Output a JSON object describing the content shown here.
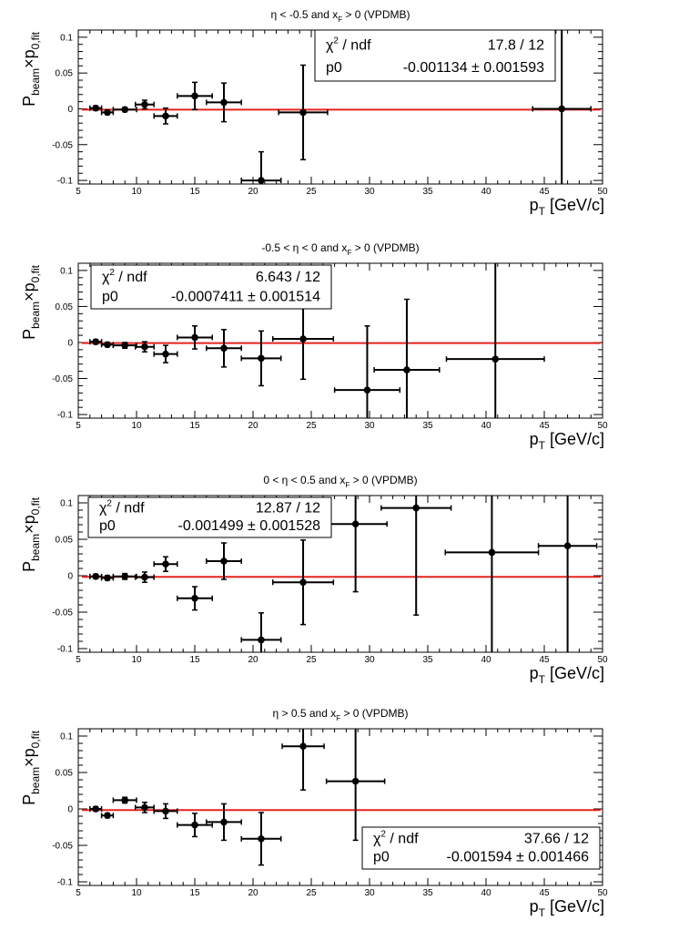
{
  "chart_data": [
    {
      "type": "scatter",
      "title_parts": [
        "η < -0.5 and x",
        "F",
        " > 0 (VPDMB)"
      ],
      "xlabel": "p",
      "xlabel_sub": "T",
      "xlabel_unit": " [GeV/c]",
      "ylabel": "P",
      "ylabel_sub1": "beam",
      "ylabel_mid": "×p",
      "ylabel_sub2": "0,fit",
      "xlim": [
        5,
        50
      ],
      "ylim": [
        -0.105,
        0.11
      ],
      "xticks": [
        "5",
        "10",
        "15",
        "20",
        "25",
        "30",
        "35",
        "40",
        "45",
        "50"
      ],
      "yticks": [
        "0.1",
        "0.05",
        "0",
        "-0.05",
        "-0.1"
      ],
      "legend_position": "top-right",
      "stats": {
        "chi2_label": "χ",
        "chi2_sup": "2",
        "chi2_suffix": " / ndf",
        "chi2_value": "17.8 / 12",
        "p0_label": "p0",
        "p0_value": "-0.001134 ± 0.001593"
      },
      "fit_value": -0.001134,
      "points": [
        {
          "x": 6.5,
          "y": 0.001,
          "xerr": 0.5,
          "yerr": 0.003
        },
        {
          "x": 7.5,
          "y": -0.005,
          "xerr": 0.5,
          "yerr": 0.003
        },
        {
          "x": 9.0,
          "y": -0.001,
          "xerr": 1.0,
          "yerr": 0.003
        },
        {
          "x": 10.7,
          "y": 0.006,
          "xerr": 0.8,
          "yerr": 0.006
        },
        {
          "x": 12.5,
          "y": -0.01,
          "xerr": 1.0,
          "yerr": 0.011
        },
        {
          "x": 15.0,
          "y": 0.018,
          "xerr": 1.5,
          "yerr": 0.019
        },
        {
          "x": 17.5,
          "y": 0.009,
          "xerr": 1.5,
          "yerr": 0.027
        },
        {
          "x": 20.7,
          "y": -0.1,
          "xerr": 1.7,
          "yerr": 0.04
        },
        {
          "x": 24.3,
          "y": -0.005,
          "xerr": 2.1,
          "yerr": 0.066
        },
        {
          "x": 46.5,
          "y": 0.0,
          "xerr": 2.5,
          "yerr": 0.11
        }
      ]
    },
    {
      "type": "scatter",
      "title_parts": [
        "-0.5 < η < 0 and x",
        "F",
        " > 0 (VPDMB)"
      ],
      "xlabel": "p",
      "xlabel_sub": "T",
      "xlabel_unit": " [GeV/c]",
      "ylabel": "P",
      "ylabel_sub1": "beam",
      "ylabel_mid": "×p",
      "ylabel_sub2": "0,fit",
      "xlim": [
        5,
        50
      ],
      "ylim": [
        -0.105,
        0.11
      ],
      "xticks": [
        "5",
        "10",
        "15",
        "20",
        "25",
        "30",
        "35",
        "40",
        "45",
        "50"
      ],
      "yticks": [
        "0.1",
        "0.05",
        "0",
        "-0.05",
        "-0.1"
      ],
      "legend_position": "top-left",
      "stats": {
        "chi2_label": "χ",
        "chi2_sup": "2",
        "chi2_suffix": " / ndf",
        "chi2_value": "6.643 / 12",
        "p0_label": "p0",
        "p0_value": "-0.0007411 ± 0.001514"
      },
      "fit_value": -0.0007411,
      "points": [
        {
          "x": 6.5,
          "y": 0.001,
          "xerr": 0.5,
          "yerr": 0.003
        },
        {
          "x": 7.5,
          "y": -0.003,
          "xerr": 0.5,
          "yerr": 0.003
        },
        {
          "x": 9.0,
          "y": -0.004,
          "xerr": 1.0,
          "yerr": 0.004
        },
        {
          "x": 10.7,
          "y": -0.006,
          "xerr": 0.8,
          "yerr": 0.007
        },
        {
          "x": 12.5,
          "y": -0.016,
          "xerr": 1.0,
          "yerr": 0.012
        },
        {
          "x": 15.0,
          "y": 0.007,
          "xerr": 1.5,
          "yerr": 0.016
        },
        {
          "x": 17.5,
          "y": -0.008,
          "xerr": 1.5,
          "yerr": 0.026
        },
        {
          "x": 20.7,
          "y": -0.022,
          "xerr": 1.7,
          "yerr": 0.038
        },
        {
          "x": 24.3,
          "y": 0.005,
          "xerr": 2.6,
          "yerr": 0.056
        },
        {
          "x": 29.8,
          "y": -0.066,
          "xerr": 2.8,
          "yerr": 0.089
        },
        {
          "x": 33.2,
          "y": -0.038,
          "xerr": 2.8,
          "yerr": 0.098
        },
        {
          "x": 40.8,
          "y": -0.023,
          "xerr": 4.2,
          "yerr": 0.135
        }
      ]
    },
    {
      "type": "scatter",
      "title_parts": [
        "0 < η < 0.5 and x",
        "F",
        " > 0 (VPDMB)"
      ],
      "xlabel": "p",
      "xlabel_sub": "T",
      "xlabel_unit": " [GeV/c]",
      "ylabel": "P",
      "ylabel_sub1": "beam",
      "ylabel_mid": "×p",
      "ylabel_sub2": "0,fit",
      "xlim": [
        5,
        50
      ],
      "ylim": [
        -0.105,
        0.11
      ],
      "xticks": [
        "5",
        "10",
        "15",
        "20",
        "25",
        "30",
        "35",
        "40",
        "45",
        "50"
      ],
      "yticks": [
        "0.1",
        "0.05",
        "0",
        "-0.05",
        "-0.1"
      ],
      "legend_position": "top-left",
      "stats": {
        "chi2_label": "χ",
        "chi2_sup": "2",
        "chi2_suffix": " / ndf",
        "chi2_value": "12.87 / 12",
        "p0_label": "p0",
        "p0_value": "-0.001499 ± 0.001528"
      },
      "fit_value": -0.001499,
      "points": [
        {
          "x": 6.5,
          "y": -0.001,
          "xerr": 0.5,
          "yerr": 0.003
        },
        {
          "x": 7.5,
          "y": -0.003,
          "xerr": 0.5,
          "yerr": 0.003
        },
        {
          "x": 9.0,
          "y": -0.001,
          "xerr": 1.0,
          "yerr": 0.004
        },
        {
          "x": 10.7,
          "y": -0.002,
          "xerr": 0.8,
          "yerr": 0.007
        },
        {
          "x": 12.5,
          "y": 0.016,
          "xerr": 1.0,
          "yerr": 0.01
        },
        {
          "x": 15.0,
          "y": -0.031,
          "xerr": 1.5,
          "yerr": 0.016
        },
        {
          "x": 17.5,
          "y": 0.02,
          "xerr": 1.5,
          "yerr": 0.025
        },
        {
          "x": 20.7,
          "y": -0.088,
          "xerr": 1.7,
          "yerr": 0.037
        },
        {
          "x": 24.3,
          "y": -0.009,
          "xerr": 2.6,
          "yerr": 0.058
        },
        {
          "x": 28.8,
          "y": 0.071,
          "xerr": 2.7,
          "yerr": 0.093
        },
        {
          "x": 34.0,
          "y": 0.093,
          "xerr": 3.0,
          "yerr": 0.147
        },
        {
          "x": 40.5,
          "y": 0.032,
          "xerr": 4.0,
          "yerr": 0.14
        },
        {
          "x": 47.0,
          "y": 0.041,
          "xerr": 2.5,
          "yerr": 0.15
        }
      ]
    },
    {
      "type": "scatter",
      "title_parts": [
        "η > 0.5 and x",
        "F",
        " > 0 (VPDMB)"
      ],
      "xlabel": "p",
      "xlabel_sub": "T",
      "xlabel_unit": " [GeV/c]",
      "ylabel": "P",
      "ylabel_sub1": "beam",
      "ylabel_mid": "×p",
      "ylabel_sub2": "0,fit",
      "xlim": [
        5,
        50
      ],
      "ylim": [
        -0.105,
        0.11
      ],
      "xticks": [
        "5",
        "10",
        "15",
        "20",
        "25",
        "30",
        "35",
        "40",
        "45",
        "50"
      ],
      "yticks": [
        "0.1",
        "0.05",
        "0",
        "-0.05",
        "-0.1"
      ],
      "legend_position": "bottom-right",
      "stats": {
        "chi2_label": "χ",
        "chi2_sup": "2",
        "chi2_suffix": " / ndf",
        "chi2_value": "37.66 / 12",
        "p0_label": "p0",
        "p0_value": "-0.001594 ± 0.001466"
      },
      "fit_value": -0.001594,
      "points": [
        {
          "x": 6.5,
          "y": 0.0,
          "xerr": 0.5,
          "yerr": 0.003
        },
        {
          "x": 7.5,
          "y": -0.009,
          "xerr": 0.5,
          "yerr": 0.003
        },
        {
          "x": 9.0,
          "y": 0.012,
          "xerr": 1.0,
          "yerr": 0.004
        },
        {
          "x": 10.7,
          "y": 0.002,
          "xerr": 0.8,
          "yerr": 0.007
        },
        {
          "x": 12.5,
          "y": -0.003,
          "xerr": 1.0,
          "yerr": 0.01
        },
        {
          "x": 15.0,
          "y": -0.022,
          "xerr": 1.5,
          "yerr": 0.016
        },
        {
          "x": 17.5,
          "y": -0.018,
          "xerr": 1.5,
          "yerr": 0.025
        },
        {
          "x": 20.7,
          "y": -0.041,
          "xerr": 1.7,
          "yerr": 0.036
        },
        {
          "x": 24.3,
          "y": 0.086,
          "xerr": 1.8,
          "yerr": 0.06
        },
        {
          "x": 28.8,
          "y": 0.038,
          "xerr": 2.5,
          "yerr": 0.081
        }
      ]
    }
  ]
}
